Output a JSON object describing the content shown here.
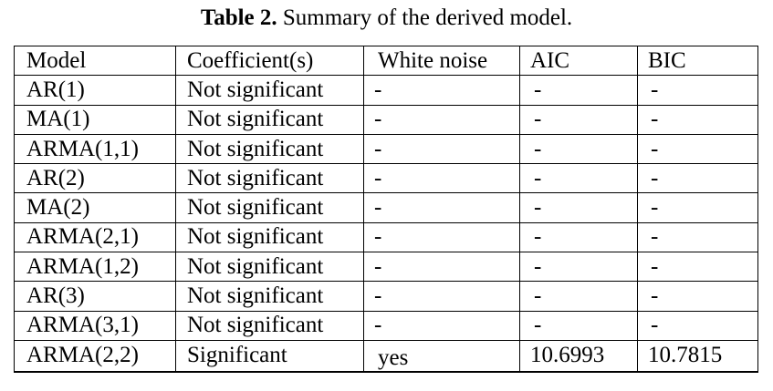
{
  "caption": {
    "label": "Table 2.",
    "text": " Summary of the derived model."
  },
  "table": {
    "headers": [
      "Model",
      "Coefficient(s)",
      "White noise",
      "AIC",
      "BIC"
    ],
    "rows": [
      [
        "AR(1)",
        "Not significant",
        "-",
        "-",
        "-"
      ],
      [
        "MA(1)",
        "Not significant",
        "-",
        "-",
        "-"
      ],
      [
        "ARMA(1,1)",
        "Not significant",
        "-",
        "-",
        "-"
      ],
      [
        "AR(2)",
        "Not significant",
        "-",
        "-",
        "-"
      ],
      [
        "MA(2)",
        "Not significant",
        "-",
        "-",
        "-"
      ],
      [
        "ARMA(2,1)",
        "Not significant",
        "-",
        "-",
        "-"
      ],
      [
        "ARMA(1,2)",
        "Not significant",
        "-",
        "-",
        "-"
      ],
      [
        "AR(3)",
        "Not significant",
        "-",
        "-",
        "-"
      ],
      [
        "ARMA(3,1)",
        "Not significant",
        "-",
        "-",
        "-"
      ],
      [
        "ARMA(2,2)",
        "Significant",
        "yes",
        "10.6993",
        "10.7815"
      ]
    ]
  }
}
